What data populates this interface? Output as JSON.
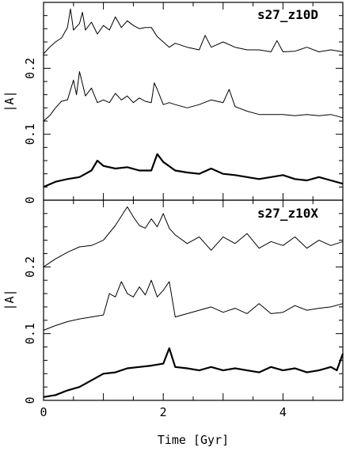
{
  "chart_data": [
    {
      "type": "line",
      "title": "s27_z10D",
      "ylabel": "|A|",
      "xlabel": "",
      "xlim": [
        0,
        5
      ],
      "ylim": [
        0,
        0.3
      ],
      "xticks": [
        0,
        2,
        4
      ],
      "yticks": [
        0,
        0.1,
        0.2
      ],
      "ytick_labels": [
        "0",
        "0.1",
        "0.2"
      ],
      "series": [
        {
          "line_weight": "thin",
          "x": [
            0,
            0.1,
            0.2,
            0.3,
            0.4,
            0.45,
            0.5,
            0.6,
            0.65,
            0.7,
            0.8,
            0.9,
            1.0,
            1.1,
            1.2,
            1.3,
            1.4,
            1.5,
            1.6,
            1.7,
            1.8,
            1.9,
            2.0,
            2.1,
            2.2,
            2.4,
            2.6,
            2.7,
            2.8,
            3.0,
            3.2,
            3.4,
            3.6,
            3.8,
            3.9,
            4.0,
            4.2,
            4.4,
            4.6,
            4.8,
            5.0
          ],
          "y": [
            0.222,
            0.232,
            0.24,
            0.246,
            0.262,
            0.29,
            0.258,
            0.268,
            0.285,
            0.258,
            0.27,
            0.252,
            0.265,
            0.258,
            0.278,
            0.262,
            0.272,
            0.265,
            0.26,
            0.262,
            0.262,
            0.248,
            0.24,
            0.232,
            0.238,
            0.232,
            0.228,
            0.25,
            0.232,
            0.24,
            0.232,
            0.228,
            0.228,
            0.225,
            0.242,
            0.225,
            0.226,
            0.232,
            0.225,
            0.228,
            0.225
          ]
        },
        {
          "line_weight": "thin",
          "x": [
            0,
            0.1,
            0.2,
            0.3,
            0.4,
            0.5,
            0.55,
            0.6,
            0.7,
            0.8,
            0.9,
            1.0,
            1.1,
            1.2,
            1.3,
            1.4,
            1.5,
            1.6,
            1.7,
            1.8,
            1.85,
            1.9,
            2.0,
            2.1,
            2.2,
            2.4,
            2.6,
            2.8,
            3.0,
            3.1,
            3.2,
            3.4,
            3.6,
            3.8,
            4.0,
            4.2,
            4.4,
            4.6,
            4.8,
            5.0
          ],
          "y": [
            0.12,
            0.128,
            0.14,
            0.15,
            0.152,
            0.182,
            0.16,
            0.195,
            0.158,
            0.17,
            0.148,
            0.152,
            0.148,
            0.162,
            0.152,
            0.158,
            0.148,
            0.155,
            0.15,
            0.148,
            0.178,
            0.168,
            0.145,
            0.148,
            0.145,
            0.14,
            0.145,
            0.152,
            0.148,
            0.168,
            0.142,
            0.135,
            0.13,
            0.13,
            0.13,
            0.128,
            0.13,
            0.128,
            0.13,
            0.125
          ]
        },
        {
          "line_weight": "thick",
          "x": [
            0,
            0.2,
            0.4,
            0.6,
            0.8,
            0.9,
            1.0,
            1.2,
            1.4,
            1.6,
            1.8,
            1.9,
            2.0,
            2.2,
            2.4,
            2.6,
            2.8,
            3.0,
            3.2,
            3.4,
            3.6,
            3.8,
            4.0,
            4.2,
            4.4,
            4.6,
            4.8,
            5.0
          ],
          "y": [
            0.02,
            0.028,
            0.032,
            0.035,
            0.045,
            0.06,
            0.052,
            0.048,
            0.05,
            0.045,
            0.045,
            0.07,
            0.058,
            0.045,
            0.042,
            0.04,
            0.048,
            0.04,
            0.038,
            0.035,
            0.032,
            0.035,
            0.038,
            0.032,
            0.03,
            0.035,
            0.03,
            0.025
          ]
        }
      ]
    },
    {
      "type": "line",
      "title": "s27_z10X",
      "ylabel": "|A|",
      "xlabel": "Time [Gyr]",
      "xlim": [
        0,
        5
      ],
      "ylim": [
        0,
        0.3
      ],
      "xticks": [
        0,
        2,
        4
      ],
      "xtick_labels": [
        "0",
        "2",
        "4"
      ],
      "yticks": [
        0,
        0.1,
        0.2
      ],
      "ytick_labels": [
        "0",
        "0.1",
        "0.2"
      ],
      "series": [
        {
          "line_weight": "thin",
          "x": [
            0,
            0.2,
            0.4,
            0.6,
            0.8,
            1.0,
            1.2,
            1.4,
            1.5,
            1.6,
            1.7,
            1.8,
            1.9,
            2.0,
            2.1,
            2.2,
            2.4,
            2.6,
            2.8,
            3.0,
            3.2,
            3.4,
            3.6,
            3.8,
            4.0,
            4.2,
            4.4,
            4.6,
            4.8,
            5.0
          ],
          "y": [
            0.2,
            0.212,
            0.222,
            0.23,
            0.232,
            0.24,
            0.262,
            0.29,
            0.275,
            0.262,
            0.258,
            0.272,
            0.26,
            0.28,
            0.258,
            0.248,
            0.235,
            0.245,
            0.225,
            0.245,
            0.235,
            0.25,
            0.228,
            0.238,
            0.232,
            0.245,
            0.228,
            0.24,
            0.232,
            0.238
          ]
        },
        {
          "line_weight": "thin",
          "x": [
            0,
            0.2,
            0.4,
            0.6,
            0.8,
            1.0,
            1.1,
            1.2,
            1.3,
            1.4,
            1.5,
            1.6,
            1.7,
            1.8,
            1.9,
            2.0,
            2.1,
            2.2,
            2.4,
            2.6,
            2.8,
            3.0,
            3.2,
            3.4,
            3.6,
            3.8,
            4.0,
            4.2,
            4.4,
            4.6,
            4.8,
            5.0
          ],
          "y": [
            0.105,
            0.112,
            0.118,
            0.122,
            0.125,
            0.128,
            0.16,
            0.155,
            0.178,
            0.16,
            0.155,
            0.17,
            0.158,
            0.18,
            0.155,
            0.165,
            0.178,
            0.125,
            0.13,
            0.135,
            0.14,
            0.132,
            0.138,
            0.13,
            0.145,
            0.13,
            0.132,
            0.142,
            0.135,
            0.138,
            0.14,
            0.145
          ]
        },
        {
          "line_weight": "thick",
          "x": [
            0,
            0.2,
            0.4,
            0.6,
            0.8,
            1.0,
            1.2,
            1.4,
            1.6,
            1.8,
            2.0,
            2.1,
            2.2,
            2.4,
            2.6,
            2.8,
            3.0,
            3.2,
            3.4,
            3.6,
            3.8,
            4.0,
            4.2,
            4.4,
            4.6,
            4.8,
            4.9,
            5.0
          ],
          "y": [
            0.005,
            0.008,
            0.015,
            0.02,
            0.03,
            0.04,
            0.042,
            0.048,
            0.05,
            0.052,
            0.055,
            0.078,
            0.05,
            0.048,
            0.045,
            0.05,
            0.045,
            0.048,
            0.045,
            0.042,
            0.05,
            0.045,
            0.048,
            0.042,
            0.045,
            0.05,
            0.045,
            0.07
          ]
        }
      ]
    }
  ]
}
